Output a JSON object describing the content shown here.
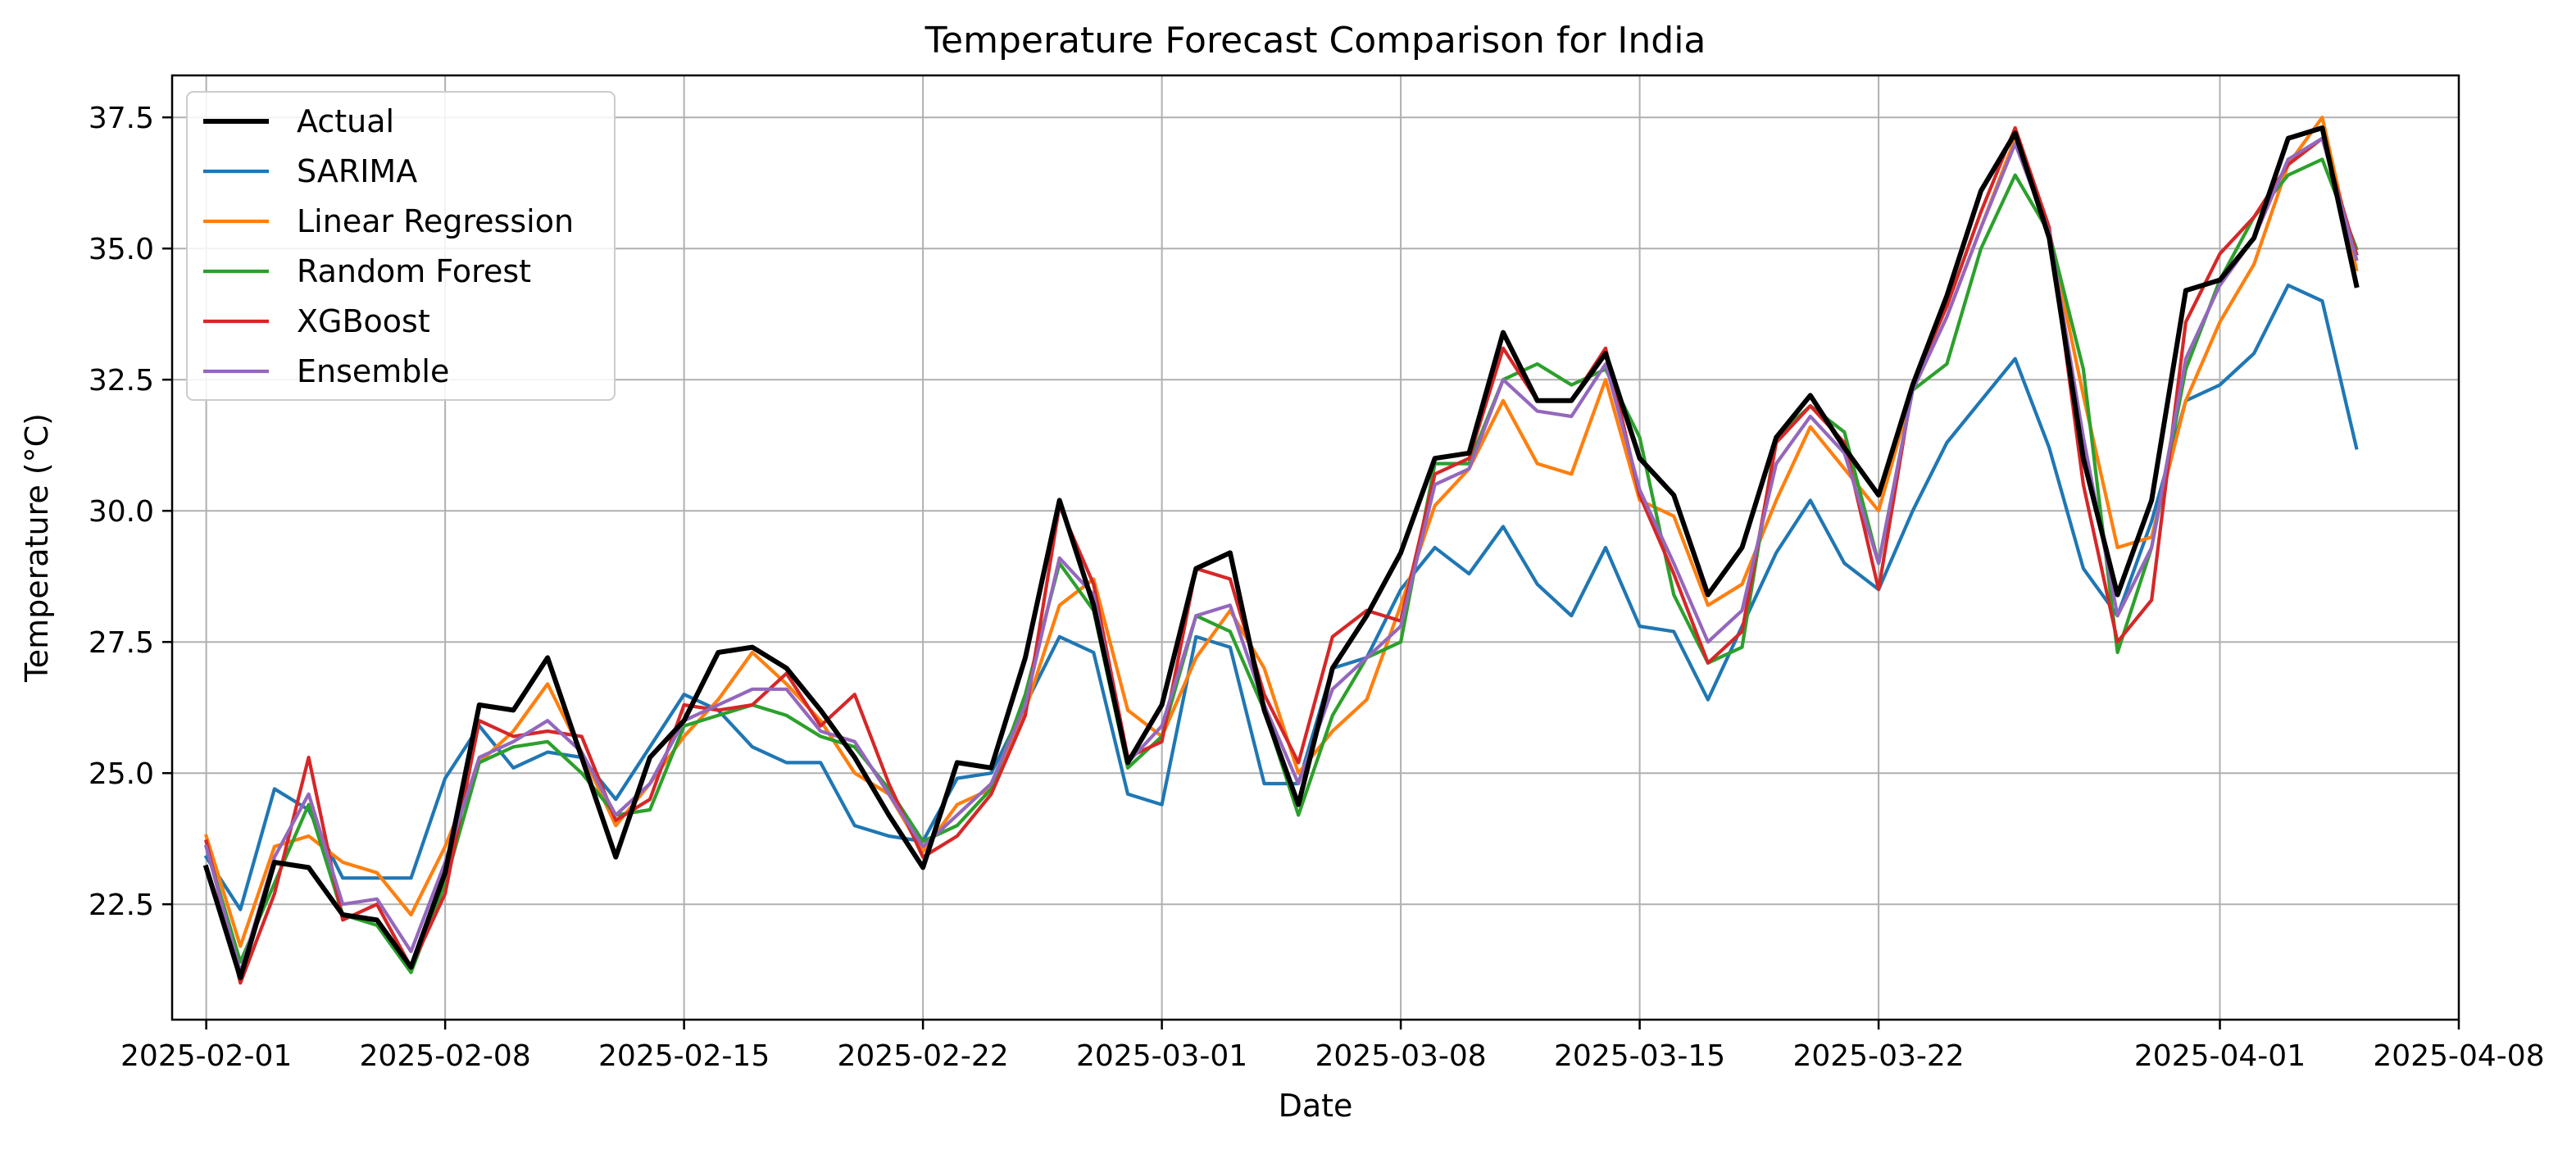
{
  "chart_data": {
    "type": "line",
    "title": "Temperature Forecast Comparison for India",
    "xlabel": "Date",
    "ylabel": "Temperature (°C)",
    "x_start": "2025-02-01",
    "x_range": [
      "2025-01-31",
      "2025-04-08"
    ],
    "xticks": [
      "2025-02-01",
      "2025-02-08",
      "2025-02-15",
      "2025-02-22",
      "2025-03-01",
      "2025-03-08",
      "2025-03-15",
      "2025-03-22",
      "2025-04-01",
      "2025-04-08"
    ],
    "xtick_dates": [
      "2025-02-01",
      "2025-02-08",
      "2025-02-15",
      "2025-02-22",
      "2025-03-01",
      "2025-03-08",
      "2025-03-15",
      "2025-03-22",
      "2025-04-01",
      "2025-04-08"
    ],
    "ylim": [
      20.3,
      38.3
    ],
    "yticks": [
      "22.5",
      "25.0",
      "27.5",
      "30.0",
      "32.5",
      "35.0",
      "37.5"
    ],
    "grid": true,
    "legend_position": "top-left",
    "series": [
      {
        "name": "Actual",
        "color": "#000000",
        "values": [
          23.2,
          21.1,
          23.3,
          23.2,
          22.3,
          22.2,
          21.3,
          23.1,
          26.3,
          26.2,
          27.2,
          25.3,
          23.4,
          25.3,
          26.0,
          27.3,
          27.4,
          27.0,
          26.2,
          25.3,
          24.2,
          23.2,
          25.2,
          25.1,
          27.2,
          30.2,
          28.2,
          25.2,
          26.3,
          28.9,
          29.2,
          26.2,
          24.4,
          27.0,
          28.0,
          29.2,
          31.0,
          31.1,
          33.4,
          32.1,
          32.1,
          33.0,
          31.0,
          30.3,
          28.4,
          29.3,
          31.4,
          32.2,
          31.2,
          30.3,
          32.4,
          34.1,
          36.1,
          37.2,
          35.2,
          31.0,
          28.4,
          30.2,
          34.2,
          34.4,
          35.2,
          37.1,
          37.3,
          34.3
        ]
      },
      {
        "name": "SARIMA",
        "color": "#1f77b4",
        "values": [
          23.4,
          22.4,
          24.7,
          24.3,
          23.0,
          23.0,
          23.0,
          24.9,
          25.9,
          25.1,
          25.4,
          25.3,
          24.5,
          25.5,
          26.5,
          26.2,
          25.5,
          25.2,
          25.2,
          24.0,
          23.8,
          23.7,
          24.9,
          25.0,
          26.3,
          27.6,
          27.3,
          24.6,
          24.4,
          27.6,
          27.4,
          24.8,
          24.8,
          27.0,
          27.2,
          28.5,
          29.3,
          28.8,
          29.7,
          28.6,
          28.0,
          29.3,
          27.8,
          27.7,
          26.4,
          27.8,
          29.2,
          30.2,
          29.0,
          28.5,
          30.0,
          31.3,
          32.1,
          32.9,
          31.2,
          28.9,
          28.0,
          29.8,
          32.1,
          32.4,
          33.0,
          34.3,
          34.0,
          31.2
        ]
      },
      {
        "name": "Linear Regression",
        "color": "#ff7f0e",
        "values": [
          23.8,
          21.7,
          23.6,
          23.8,
          23.3,
          23.1,
          22.3,
          23.6,
          25.2,
          25.8,
          26.7,
          25.4,
          24.0,
          24.8,
          25.7,
          26.4,
          27.3,
          26.7,
          26.0,
          25.0,
          24.6,
          23.5,
          24.4,
          24.7,
          26.2,
          28.2,
          28.7,
          26.2,
          25.7,
          27.2,
          28.1,
          27.0,
          25.0,
          25.8,
          26.4,
          28.2,
          30.1,
          30.8,
          32.1,
          30.9,
          30.7,
          32.5,
          30.2,
          29.9,
          28.2,
          28.6,
          30.2,
          31.6,
          30.8,
          30.0,
          32.3,
          33.7,
          35.4,
          37.1,
          35.3,
          32.2,
          29.3,
          29.5,
          32.1,
          33.6,
          34.7,
          36.6,
          37.5,
          34.6
        ]
      },
      {
        "name": "Random Forest",
        "color": "#2ca02c",
        "values": [
          23.6,
          21.4,
          22.9,
          24.4,
          22.3,
          22.1,
          21.2,
          22.9,
          25.2,
          25.5,
          25.6,
          25.0,
          24.2,
          24.3,
          25.9,
          26.1,
          26.3,
          26.1,
          25.7,
          25.5,
          24.7,
          23.7,
          24.0,
          24.7,
          26.5,
          29.0,
          28.1,
          25.1,
          25.7,
          28.0,
          27.7,
          26.2,
          24.2,
          26.1,
          27.2,
          27.5,
          30.9,
          30.9,
          32.5,
          32.8,
          32.4,
          32.7,
          31.4,
          28.4,
          27.1,
          27.4,
          31.4,
          32.0,
          31.5,
          29.0,
          32.3,
          32.8,
          35.0,
          36.4,
          35.3,
          32.7,
          27.3,
          29.3,
          32.7,
          34.4,
          35.6,
          36.4,
          36.7,
          35.0
        ]
      },
      {
        "name": "XGBoost",
        "color": "#d62728",
        "values": [
          23.7,
          21.0,
          22.7,
          25.3,
          22.2,
          22.5,
          21.3,
          22.7,
          26.0,
          25.7,
          25.8,
          25.7,
          24.1,
          24.5,
          26.3,
          26.2,
          26.3,
          26.9,
          25.9,
          26.5,
          24.8,
          23.4,
          23.8,
          24.6,
          26.1,
          30.1,
          28.6,
          25.3,
          25.6,
          28.9,
          28.7,
          26.5,
          25.2,
          27.6,
          28.1,
          27.9,
          30.7,
          31.0,
          33.1,
          32.1,
          32.1,
          33.1,
          30.3,
          28.8,
          27.1,
          27.7,
          31.3,
          32.0,
          31.3,
          28.5,
          32.4,
          33.9,
          35.7,
          37.3,
          35.4,
          30.5,
          27.5,
          28.3,
          33.6,
          34.9,
          35.6,
          36.6,
          37.1,
          34.9
        ]
      },
      {
        "name": "Ensemble",
        "color": "#9467bd",
        "values": [
          23.6,
          21.2,
          23.4,
          24.6,
          22.5,
          22.6,
          21.6,
          23.3,
          25.3,
          25.6,
          26.0,
          25.4,
          24.2,
          24.8,
          26.0,
          26.3,
          26.6,
          26.6,
          25.8,
          25.6,
          24.6,
          23.6,
          24.2,
          24.8,
          26.3,
          29.1,
          28.4,
          25.2,
          25.9,
          28.0,
          28.2,
          26.3,
          24.8,
          26.6,
          27.2,
          27.8,
          30.5,
          30.8,
          32.5,
          31.9,
          31.8,
          32.8,
          30.4,
          29.0,
          27.5,
          28.1,
          30.9,
          31.8,
          31.1,
          29.0,
          32.3,
          33.7,
          35.4,
          37.0,
          35.3,
          31.4,
          28.0,
          29.3,
          32.9,
          34.3,
          35.2,
          36.7,
          37.1,
          34.8
        ]
      }
    ]
  }
}
